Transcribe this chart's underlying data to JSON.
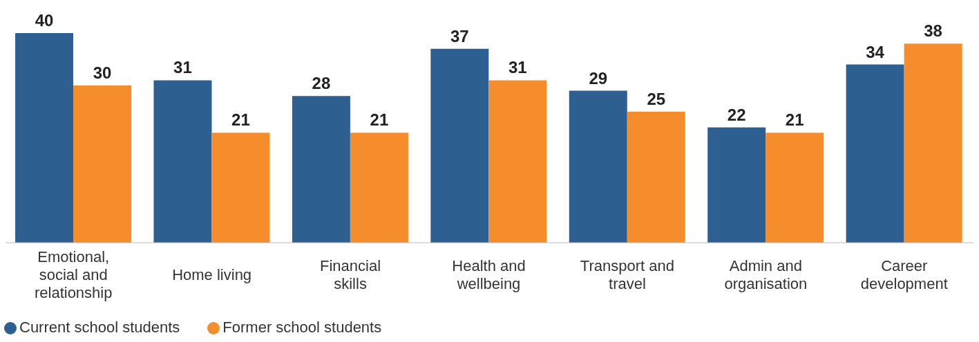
{
  "chart_data": {
    "type": "bar",
    "categories": [
      "Emotional, social and relationship",
      "Home living",
      "Financial skills",
      "Health and wellbeing",
      "Transport and travel",
      "Admin and organisation",
      "Career development"
    ],
    "series": [
      {
        "name": "Current school students",
        "color": "#2e5f91",
        "values": [
          40,
          31,
          28,
          37,
          29,
          22,
          34
        ]
      },
      {
        "name": "Former school students",
        "color": "#f58d2c",
        "values": [
          30,
          21,
          21,
          31,
          25,
          21,
          38
        ]
      }
    ],
    "data_labels": true,
    "grid": false,
    "legend": "bottom left"
  }
}
